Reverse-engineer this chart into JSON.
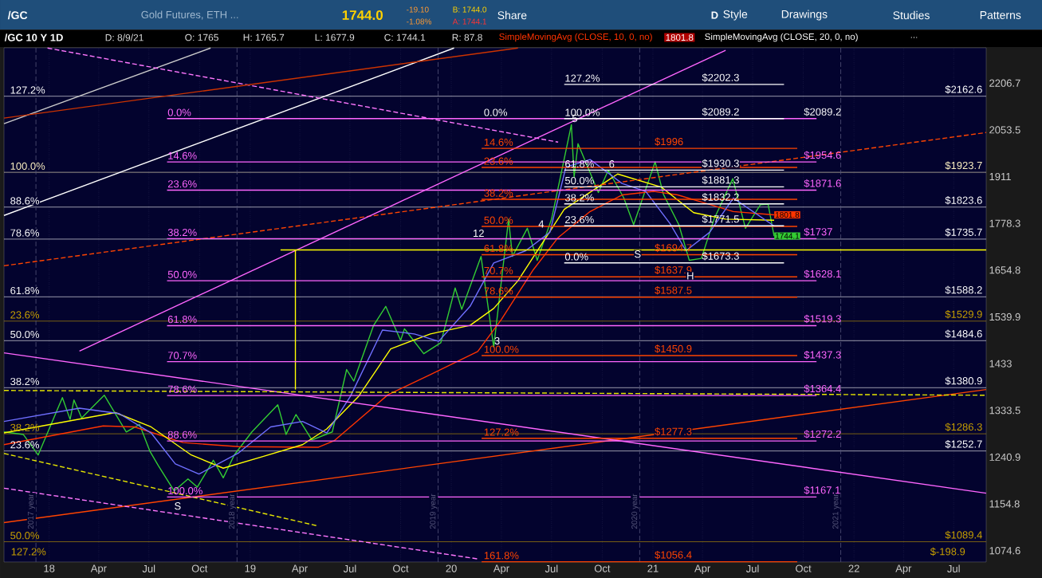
{
  "chart_data": {
    "type": "line",
    "title": "/GC 10 Y 1D",
    "xlim": [
      "2017-10-11",
      "2022-08-29"
    ],
    "ylim": [
      1056,
      2330
    ],
    "log": "y",
    "grid": "x",
    "xticks": [
      {
        "value": "2018-01-01",
        "label": "18"
      },
      {
        "value": "2018-04-01",
        "label": "Apr"
      },
      {
        "value": "2018-07-01",
        "label": "Jul"
      },
      {
        "value": "2018-10-01",
        "label": "Oct"
      },
      {
        "value": "2019-01-01",
        "label": "19"
      },
      {
        "value": "2019-04-01",
        "label": "Apr"
      },
      {
        "value": "2019-07-01",
        "label": "Jul"
      },
      {
        "value": "2019-10-01",
        "label": "Oct"
      },
      {
        "value": "2020-01-01",
        "label": "20"
      },
      {
        "value": "2020-04-01",
        "label": "Apr"
      },
      {
        "value": "2020-07-01",
        "label": "Jul"
      },
      {
        "value": "2020-10-01",
        "label": "Oct"
      },
      {
        "value": "2021-01-01",
        "label": "21"
      },
      {
        "value": "2021-04-01",
        "label": "Apr"
      },
      {
        "value": "2021-07-01",
        "label": "Jul"
      },
      {
        "value": "2021-10-01",
        "label": "Oct"
      },
      {
        "value": "2022-01-01",
        "label": "22"
      },
      {
        "value": "2022-04-01",
        "label": "Apr"
      },
      {
        "value": "2022-07-01",
        "label": "Jul"
      }
    ],
    "yticks": [
      1074.6,
      1154.8,
      1240.9,
      1333.5,
      1433,
      1539.9,
      1654.8,
      1778.3,
      1911,
      2053.5,
      2206.7
    ],
    "series": [
      {
        "color": "#33cc33",
        "x": [
          "2017-10-11",
          "2017-11-15",
          "2017-12-12",
          "2018-01-25",
          "2018-02-08",
          "2018-02-15",
          "2018-03-01",
          "2018-04-11",
          "2018-05-21",
          "2018-06-14",
          "2018-07-03",
          "2018-07-18",
          "2018-08-16",
          "2018-09-10",
          "2018-09-27",
          "2018-10-26",
          "2018-11-13",
          "2018-12-03",
          "2019-01-04",
          "2019-02-20",
          "2019-03-07",
          "2019-03-25",
          "2019-04-23",
          "2019-05-30",
          "2019-06-25",
          "2019-07-08",
          "2019-08-13",
          "2019-09-04",
          "2019-10-01",
          "2019-10-08",
          "2019-11-12",
          "2019-12-13",
          "2020-01-08",
          "2020-01-20",
          "2020-02-24",
          "2020-03-18",
          "2020-04-14",
          "2020-04-21",
          "2020-05-18",
          "2020-06-05",
          "2020-07-01",
          "2020-08-06",
          "2020-08-11",
          "2020-08-18",
          "2020-09-24",
          "2020-10-12",
          "2020-11-09",
          "2020-11-27",
          "2021-01-05",
          "2021-01-20",
          "2021-02-17",
          "2021-03-08",
          "2021-03-30",
          "2021-04-22",
          "2021-05-26",
          "2021-06-18",
          "2021-07-15",
          "2021-07-29",
          "2021-08-09"
        ],
        "values": [
          1290,
          1285,
          1245,
          1360,
          1315,
          1355,
          1318,
          1365,
          1290,
          1305,
          1252,
          1225,
          1178,
          1200,
          1185,
          1235,
          1202,
          1245,
          1290,
          1345,
          1285,
          1325,
          1274,
          1290,
          1420,
          1395,
          1520,
          1565,
          1485,
          1512,
          1455,
          1480,
          1610,
          1558,
          1690,
          1470,
          1790,
          1690,
          1765,
          1680,
          1790,
          2070,
          1910,
          2010,
          1865,
          1930,
          1850,
          1775,
          1955,
          1860,
          1775,
          1680,
          1685,
          1790,
          1905,
          1765,
          1830,
          1832,
          1744.1
        ],
        "value_labels": [
          null,
          null,
          null,
          null,
          null,
          null,
          null,
          null,
          null,
          null,
          null,
          null,
          null,
          null,
          null,
          null,
          null,
          null,
          null,
          null,
          null,
          null,
          null,
          null,
          null,
          null,
          null,
          null,
          null,
          null,
          null,
          null,
          null,
          null,
          null,
          null,
          null,
          null,
          null,
          null,
          null,
          null,
          null,
          null,
          null,
          null,
          null,
          null,
          null,
          null,
          null,
          null,
          null,
          null,
          null,
          null,
          null,
          null,
          "1744.1"
        ]
      },
      {
        "name": "SimpleMovingAvg (CLOSE, 10, 0, no)",
        "color": "#ff3300",
        "x": [
          "2017-10-11",
          "2018-04-09",
          "2018-06-05",
          "2018-09-01",
          "2018-12-11",
          "2019-05-05",
          "2019-06-03",
          "2019-09-08",
          "2019-11-24",
          "2020-02-18",
          "2020-04-01",
          "2020-05-29",
          "2020-07-13",
          "2020-09-09",
          "2020-11-06",
          "2021-01-03",
          "2021-02-15",
          "2021-03-30",
          "2021-05-27",
          "2021-08-09"
        ],
        "values": [
          1265,
          1302,
          1300,
          1269,
          1261,
          1260,
          1273,
          1366,
          1409,
          1460,
          1534,
          1656,
          1740,
          1811,
          1858,
          1868,
          1858,
          1838,
          1811,
          1801.8
        ],
        "value_labels": [
          null,
          null,
          null,
          null,
          null,
          null,
          null,
          null,
          null,
          null,
          null,
          null,
          null,
          null,
          null,
          null,
          null,
          null,
          null,
          "1801.8"
        ]
      },
      {
        "color": "#ffff00",
        "x": [
          "2017-10-11",
          "2018-05-01",
          "2018-07-05",
          "2018-09-16",
          "2018-11-13",
          "2019-01-24",
          "2019-04-06",
          "2019-05-20",
          "2019-07-17",
          "2019-09-13",
          "2019-11-24",
          "2020-02-04",
          "2020-03-18",
          "2020-05-01",
          "2020-07-24",
          "2020-10-29",
          "2021-01-17",
          "2021-03-16",
          "2021-05-13",
          "2021-08-09"
        ],
        "values": [
          1288,
          1329,
          1300,
          1245,
          1220,
          1242,
          1265,
          1296,
          1363,
          1466,
          1500,
          1520,
          1560,
          1628,
          1817,
          1919,
          1880,
          1808,
          1790,
          1787
        ]
      },
      {
        "color": "#6f6fff",
        "x": [
          "2017-10-11",
          "2018-02-25",
          "2018-05-08",
          "2018-07-05",
          "2018-08-18",
          "2018-09-30",
          "2018-12-11",
          "2019-02-07",
          "2019-04-06",
          "2019-05-20",
          "2019-07-02",
          "2019-08-29",
          "2019-10-26",
          "2019-12-09",
          "2020-02-04",
          "2020-03-18",
          "2020-05-15",
          "2020-06-28",
          "2020-07-27",
          "2020-09-09",
          "2020-11-06",
          "2020-12-19",
          "2021-02-01",
          "2021-03-02",
          "2021-04-14",
          "2021-05-27",
          "2021-08-09"
        ],
        "values": [
          1311,
          1338,
          1327,
          1288,
          1228,
          1209,
          1249,
          1300,
          1311,
          1288,
          1363,
          1509,
          1500,
          1483,
          1565,
          1673,
          1705,
          1754,
          1939,
          1962,
          1891,
          1868,
          1778,
          1705,
          1754,
          1849,
          1771
        ]
      },
      {
        "color": "#ffffff",
        "x": [
          "2017-10-11",
          "2020-01-06"
        ],
        "values": [
          1800,
          2329
        ]
      },
      {
        "color": "#cccccc",
        "x": [
          "2017-10-11",
          "2018-10-21"
        ],
        "values": [
          2073,
          2329
        ]
      },
      {
        "color": "#ff77ff",
        "line_style": "dashed",
        "x": [
          "2017-12-29",
          "2020-07-13"
        ],
        "values": [
          2329,
          2015
        ]
      },
      {
        "color": "#ff4400",
        "line_style": "dashed",
        "x": [
          "2017-10-11",
          "2022-08-29"
        ],
        "values": [
          1666,
          2045
        ]
      },
      {
        "color": "#ff66ff",
        "x": [
          "2018-02-25",
          "2021-05-13"
        ],
        "values": [
          1461,
          2321
        ]
      },
      {
        "color": "#ff4400",
        "x": [
          "2017-10-11",
          "2022-08-29"
        ],
        "values": [
          1122,
          1377
        ]
      },
      {
        "color": "#ff66ff",
        "x": [
          "2017-10-11",
          "2022-08-29"
        ],
        "values": [
          1457,
          1174
        ]
      },
      {
        "color": "#e6e600",
        "line_style": "dashed",
        "x": [
          "2017-10-11",
          "2022-08-29"
        ],
        "values": [
          1375,
          1365
        ]
      },
      {
        "color": "#e6e600",
        "line_style": "dashed",
        "x": [
          "2017-10-11",
          "2019-05-05"
        ],
        "values": [
          1248,
          1116
        ]
      },
      {
        "color": "#ff77ff",
        "line_style": "dashed",
        "x": [
          "2017-10-11",
          "2020-02-18"
        ],
        "values": [
          1183,
          1061
        ]
      },
      {
        "color": "#cc3300",
        "x": [
          "2017-10-11",
          "2020-05-01"
        ],
        "values": [
          2091,
          2329
        ]
      },
      {
        "color": "#ffff00",
        "x": [
          "2019-02-25",
          "2022-08-29"
        ],
        "values": [
          1707,
          1707
        ]
      },
      {
        "color": "#ffff00",
        "x": [
          "2019-03-24",
          "2019-03-24"
        ],
        "values": [
          1707,
          1377
        ]
      },
      {
        "color": "#ff66ff",
        "x": [
          "2018-08-03",
          "2021-10-25"
        ],
        "values": [
          2089.2,
          2089.2
        ]
      },
      {
        "color": "#ff66ff",
        "x": [
          "2018-08-03",
          "2021-10-25"
        ],
        "values": [
          1954.6,
          1954.6
        ]
      },
      {
        "color": "#ff66ff",
        "x": [
          "2018-08-03",
          "2021-10-25"
        ],
        "values": [
          1871.6,
          1871.6
        ]
      },
      {
        "color": "#ff66ff",
        "x": [
          "2018-08-03",
          "2021-10-25"
        ],
        "values": [
          1737,
          1737
        ]
      },
      {
        "color": "#ff66ff",
        "x": [
          "2018-08-03",
          "2021-10-25"
        ],
        "values": [
          1628.1,
          1628.1
        ]
      },
      {
        "color": "#ff66ff",
        "x": [
          "2018-08-03",
          "2021-10-25"
        ],
        "values": [
          1519.3,
          1519.3
        ]
      },
      {
        "color": "#ff66ff",
        "x": [
          "2018-08-03",
          "2021-10-25"
        ],
        "values": [
          1437.3,
          1437.3
        ]
      },
      {
        "color": "#ff66ff",
        "x": [
          "2018-08-03",
          "2021-10-25"
        ],
        "values": [
          1364.4,
          1364.4
        ]
      },
      {
        "color": "#ff66ff",
        "x": [
          "2018-08-03",
          "2021-10-25"
        ],
        "values": [
          1272.2,
          1272.2
        ]
      },
      {
        "color": "#ff66ff",
        "x": [
          "2018-08-03",
          "2021-10-25"
        ],
        "values": [
          1167.1,
          1167.1
        ]
      },
      {
        "color": "#ff4400",
        "x": [
          "2020-02-25",
          "2021-09-20"
        ],
        "values": [
          1996,
          1996
        ]
      },
      {
        "color": "#ff4400",
        "x": [
          "2020-02-25",
          "2021-09-20"
        ],
        "values": [
          1938.6,
          1938.6
        ]
      },
      {
        "color": "#ff4400",
        "x": [
          "2020-02-25",
          "2021-09-20"
        ],
        "values": [
          1845.4,
          1845.4
        ]
      },
      {
        "color": "#ff4400",
        "x": [
          "2020-02-25",
          "2021-09-20"
        ],
        "values": [
          1770,
          1770
        ]
      },
      {
        "color": "#ff4400",
        "x": [
          "2020-02-25",
          "2021-09-20"
        ],
        "values": [
          1694.7,
          1694.7
        ]
      },
      {
        "color": "#ff4400",
        "x": [
          "2020-02-25",
          "2021-09-20"
        ],
        "values": [
          1637.9,
          1637.9
        ]
      },
      {
        "color": "#ff4400",
        "x": [
          "2020-02-25",
          "2021-09-20"
        ],
        "values": [
          1587.5,
          1587.5
        ]
      },
      {
        "color": "#ff4400",
        "x": [
          "2020-02-25",
          "2021-09-20"
        ],
        "values": [
          1450.9,
          1450.9
        ]
      },
      {
        "color": "#ff4400",
        "x": [
          "2020-02-25",
          "2021-09-20"
        ],
        "values": [
          1277.3,
          1277.3
        ]
      },
      {
        "color": "#ff4400",
        "x": [
          "2020-02-25",
          "2021-09-20"
        ],
        "values": [
          1056.4,
          1056.4
        ]
      },
      {
        "color": "#ffffff",
        "x": [
          "2020-07-24",
          "2021-08-27"
        ],
        "values": [
          2202.3,
          2202.3
        ]
      },
      {
        "color": "#ffffff",
        "x": [
          "2020-07-24",
          "2021-08-27"
        ],
        "values": [
          2089.2,
          2089.2
        ]
      },
      {
        "color": "#ffffff",
        "x": [
          "2020-07-24",
          "2021-08-27"
        ],
        "values": [
          1930.3,
          1930.3
        ]
      },
      {
        "color": "#ffffff",
        "x": [
          "2020-07-24",
          "2021-08-27"
        ],
        "values": [
          1881.3,
          1881.3
        ]
      },
      {
        "color": "#ffffff",
        "x": [
          "2020-07-24",
          "2021-08-27"
        ],
        "values": [
          1832.2,
          1832.2
        ]
      },
      {
        "color": "#ffffff",
        "x": [
          "2020-07-24",
          "2021-08-27"
        ],
        "values": [
          1771.5,
          1771.5
        ]
      },
      {
        "color": "#ffffff",
        "x": [
          "2020-07-24",
          "2021-08-27"
        ],
        "values": [
          1673.3,
          1673.3
        ]
      }
    ],
    "ref_lines": [
      {
        "axis": "y",
        "value": 2162.6,
        "label": "$2162.6",
        "color": "#ffffff"
      },
      {
        "axis": "y",
        "value": 1923.7,
        "label": "$1923.7",
        "color": "#fff3c4"
      },
      {
        "axis": "y",
        "value": 1823.6,
        "label": "$1823.6",
        "color": "#ffffff"
      },
      {
        "axis": "y",
        "value": 1735.7,
        "label": "$1735.7",
        "color": "#ffffff"
      },
      {
        "axis": "y",
        "value": 1588.2,
        "label": "$1588.2",
        "color": "#ffffff"
      },
      {
        "axis": "y",
        "value": 1529.9,
        "label": "$1529.9",
        "color": "#c8a000"
      },
      {
        "axis": "y",
        "value": 1484.6,
        "label": "$1484.6",
        "color": "#ffffff"
      },
      {
        "axis": "y",
        "value": 1380.9,
        "label": "$1380.9",
        "color": "#ffffff"
      },
      {
        "axis": "y",
        "value": 1286.3,
        "label": "$1286.3",
        "color": "#c8a000"
      },
      {
        "axis": "y",
        "value": 1252.7,
        "label": "$1252.7",
        "color": "#ffffff"
      },
      {
        "axis": "y",
        "value": 1089.4,
        "label": "$1089.4",
        "color": "#c8a000"
      },
      {
        "axis": "x",
        "value": "2017-12-08",
        "label": "2017 year",
        "color": "#55557a",
        "line_style": "dashed"
      },
      {
        "axis": "x",
        "value": "2018-12-08",
        "label": "2018 year",
        "color": "#55557a",
        "line_style": "dashed"
      },
      {
        "axis": "x",
        "value": "2019-12-08",
        "label": "2019 year",
        "color": "#55557a",
        "line_style": "dashed"
      },
      {
        "axis": "x",
        "value": "2020-12-08",
        "label": "2020 year",
        "color": "#55557a",
        "line_style": "dashed"
      },
      {
        "axis": "x",
        "value": "2021-12-08",
        "label": "2021 year",
        "color": "#55557a",
        "line_style": "dashed"
      }
    ],
    "annotations": [
      "/GC",
      "Gold Futures, ETH ...",
      "1744.0",
      "-19.10",
      "-1.08%",
      "B: 1744.0",
      "A: 1744.1",
      "Share",
      "D",
      "Style",
      "Drawings",
      "Studies",
      "Patterns",
      "D: 8/9/21",
      "O: 1765",
      "H: 1765.7",
      "L: 1677.9",
      "C: 1744.1",
      "R: 87.8",
      "1801.8",
      "SimpleMovingAvg (CLOSE, 20, 0, no)",
      "...",
      "127.2%",
      "$-198.9",
      {
        "text": "127.2%",
        "x": "2017-10-21",
        "y": 2162.6
      },
      {
        "text": "100.0%",
        "x": "2017-10-21",
        "y": 1923.7
      },
      {
        "text": "88.6%",
        "x": "2017-10-21",
        "y": 1823.6
      },
      {
        "text": "78.6%",
        "x": "2017-10-21",
        "y": 1735.7
      },
      {
        "text": "61.8%",
        "x": "2017-10-21",
        "y": 1588.2
      },
      {
        "text": "23.6%",
        "x": "2017-10-21",
        "y": 1529.9
      },
      {
        "text": "50.0%",
        "x": "2017-10-21",
        "y": 1484.6
      },
      {
        "text": "38.2%",
        "x": "2017-10-21",
        "y": 1380.9
      },
      {
        "text": "38.2%",
        "x": "2017-10-21",
        "y": 1286.3
      },
      {
        "text": "23.6%",
        "x": "2017-10-21",
        "y": 1252.7
      },
      {
        "text": "50.0%",
        "x": "2017-10-21",
        "y": 1089.4
      },
      {
        "text": "0.0%",
        "x": "2018-08-03",
        "y": 2089.2
      },
      {
        "text": "14.6%",
        "x": "2018-08-03",
        "y": 1954.6
      },
      {
        "text": "23.6%",
        "x": "2018-08-03",
        "y": 1871.6
      },
      {
        "text": "38.2%",
        "x": "2018-08-03",
        "y": 1737
      },
      {
        "text": "50.0%",
        "x": "2018-08-03",
        "y": 1628.1
      },
      {
        "text": "61.8%",
        "x": "2018-08-03",
        "y": 1519.3
      },
      {
        "text": "70.7%",
        "x": "2018-08-03",
        "y": 1437.3
      },
      {
        "text": "78.6%",
        "x": "2018-08-03",
        "y": 1364.4
      },
      {
        "text": "88.6%",
        "x": "2018-08-03",
        "y": 1272.2
      },
      {
        "text": "100.0%",
        "x": "2018-08-03",
        "y": 1167.1
      },
      {
        "text": "$2089.2",
        "x": "2021-10-01",
        "y": 2089.2
      },
      {
        "text": "$1954.6",
        "x": "2021-10-01",
        "y": 1954.6
      },
      {
        "text": "$1871.6",
        "x": "2021-10-01",
        "y": 1871.6
      },
      {
        "text": "$1737",
        "x": "2021-10-01",
        "y": 1737
      },
      {
        "text": "$1628.1",
        "x": "2021-10-01",
        "y": 1628.1
      },
      {
        "text": "$1519.3",
        "x": "2021-10-01",
        "y": 1519.3
      },
      {
        "text": "$1437.3",
        "x": "2021-10-01",
        "y": 1437.3
      },
      {
        "text": "$1364.4",
        "x": "2021-10-01",
        "y": 1364.4
      },
      {
        "text": "$1272.2",
        "x": "2021-10-01",
        "y": 1272.2
      },
      {
        "text": "$1167.1",
        "x": "2021-10-01",
        "y": 1167.1
      },
      {
        "text": "0.0%",
        "x": "2020-02-28",
        "y": 2089.2
      },
      {
        "text": "14.6%",
        "x": "2020-02-28",
        "y": 1996
      },
      {
        "text": "23.6%",
        "x": "2020-02-28",
        "y": 1938.6
      },
      {
        "text": "38.2%",
        "x": "2020-02-28",
        "y": 1845.4
      },
      {
        "text": "50.0%",
        "x": "2020-02-28",
        "y": 1770
      },
      {
        "text": "61.8%",
        "x": "2020-02-28",
        "y": 1694.7
      },
      {
        "text": "70.7%",
        "x": "2020-02-28",
        "y": 1637.9
      },
      {
        "text": "78.6%",
        "x": "2020-02-28",
        "y": 1587.5
      },
      {
        "text": "100.0%",
        "x": "2020-02-28",
        "y": 1450.9
      },
      {
        "text": "127.2%",
        "x": "2020-02-28",
        "y": 1277.3
      },
      {
        "text": "161.8%",
        "x": "2020-02-28",
        "y": 1056.4
      },
      {
        "text": "$1996",
        "x": "2021-01-03",
        "y": 1996
      },
      {
        "text": "$1694.7",
        "x": "2021-01-03",
        "y": 1694.7
      },
      {
        "text": "$1637.9",
        "x": "2021-01-03",
        "y": 1637.9
      },
      {
        "text": "$1587.5",
        "x": "2021-01-03",
        "y": 1587.5
      },
      {
        "text": "$1450.9",
        "x": "2021-01-03",
        "y": 1450.9
      },
      {
        "text": "$1277.3",
        "x": "2021-01-03",
        "y": 1277.3
      },
      {
        "text": "$1056.4",
        "x": "2021-01-03",
        "y": 1056.4
      },
      {
        "text": "127.2%",
        "x": "2020-07-24",
        "y": 2202.3
      },
      {
        "text": "100.0%",
        "x": "2020-07-24",
        "y": 2089.2
      },
      {
        "text": "61.8%",
        "x": "2020-07-24",
        "y": 1930.3
      },
      {
        "text": "50.0%",
        "x": "2020-07-24",
        "y": 1881.3
      },
      {
        "text": "38.2%",
        "x": "2020-07-24",
        "y": 1832.2
      },
      {
        "text": "23.6%",
        "x": "2020-07-24",
        "y": 1771.5
      },
      {
        "text": "0.0%",
        "x": "2020-07-24",
        "y": 1673.3
      },
      {
        "text": "$2202.3",
        "x": "2021-03-30",
        "y": 2202.3
      },
      {
        "text": "$2089.2",
        "x": "2021-03-30",
        "y": 2089.2
      },
      {
        "text": "$1930.3",
        "x": "2021-03-30",
        "y": 1930.3
      },
      {
        "text": "$1881.3",
        "x": "2021-03-30",
        "y": 1881.3
      },
      {
        "text": "$1832.2",
        "x": "2021-03-30",
        "y": 1832.2
      },
      {
        "text": "$1771.5",
        "x": "2021-03-30",
        "y": 1771.5
      },
      {
        "text": "$1673.3",
        "x": "2021-03-30",
        "y": 1673.3
      },
      {
        "text": "12",
        "x": "2020-02-08",
        "y": 1735
      },
      {
        "text": "3",
        "x": "2020-03-18",
        "y": 1470
      },
      {
        "text": "4",
        "x": "2020-06-06",
        "y": 1760
      },
      {
        "text": "5",
        "x": "2020-08-06",
        "y": 2070
      },
      {
        "text": "6",
        "x": "2020-10-12",
        "y": 1930
      },
      {
        "text": "S",
        "x": "2020-11-27",
        "y": 1680
      },
      {
        "text": "H",
        "x": "2021-03-02",
        "y": 1625
      },
      {
        "text": "S",
        "x": "2018-08-15",
        "y": 1140
      }
    ]
  }
}
